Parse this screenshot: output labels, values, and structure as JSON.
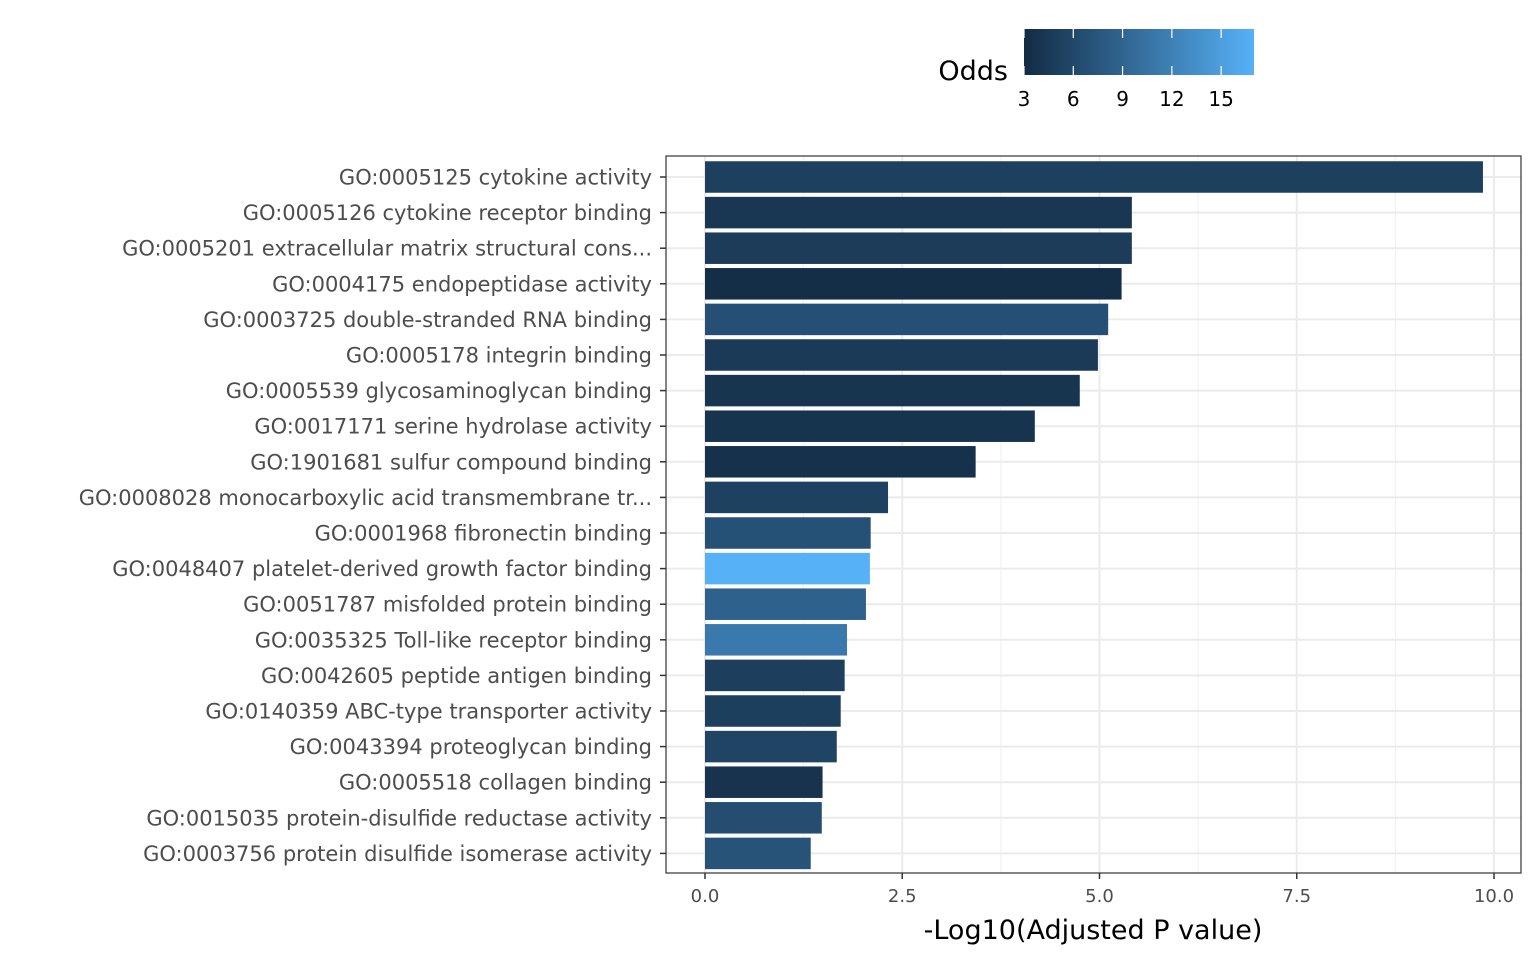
{
  "chart_data": {
    "type": "bar",
    "orientation": "horizontal",
    "title": "",
    "xlabel": "-Log10(Adjusted P value)",
    "ylabel": "",
    "xlim": [
      -0.5,
      10.35
    ],
    "x_ticks": [
      0,
      2.5,
      5,
      7.5,
      10
    ],
    "x_tick_labels": [
      "0.0",
      "2.5",
      "5.0",
      "7.5",
      "10.0"
    ],
    "grid": true,
    "legend": {
      "title": "Odds",
      "placement": "top",
      "type": "colorbar",
      "range": [
        3,
        17
      ],
      "ticks": [
        3,
        6,
        9,
        12,
        15
      ],
      "tick_labels": [
        "3",
        "6",
        "9",
        "12",
        "15"
      ],
      "color_low": "#132b43",
      "color_high": "#56b1f7"
    },
    "categories": [
      "GO:0005125 cytokine activity",
      "GO:0005126 cytokine receptor binding",
      "GO:0005201 extracellular matrix structural cons...",
      "GO:0004175 endopeptidase activity",
      "GO:0003725 double-stranded RNA binding",
      "GO:0005178 integrin binding",
      "GO:0005539 glycosaminoglycan binding",
      "GO:0017171 serine hydrolase activity",
      "GO:1901681 sulfur compound binding",
      "GO:0008028 monocarboxylic acid transmembrane tr...",
      "GO:0001968 fibronectin binding",
      "GO:0048407 platelet-derived growth factor binding",
      "GO:0051787 misfolded protein binding",
      "GO:0035325 Toll-like receptor binding",
      "GO:0042605 peptide antigen binding",
      "GO:0140359 ABC-type transporter activity",
      "GO:0043394 proteoglycan binding",
      "GO:0005518 collagen binding",
      "GO:0015035 protein-disulfide reductase activity",
      "GO:0003756 protein disulfide isomerase activity"
    ],
    "values": [
      9.86,
      5.41,
      5.41,
      5.28,
      5.11,
      4.98,
      4.75,
      4.18,
      3.43,
      2.32,
      2.1,
      2.09,
      2.04,
      1.8,
      1.77,
      1.72,
      1.67,
      1.49,
      1.48,
      1.34
    ],
    "odds": [
      5.2,
      4.2,
      4.8,
      3.3,
      6.8,
      4.6,
      4.0,
      3.9,
      3.6,
      5.3,
      7.0,
      17.0,
      8.6,
      11.2,
      5.0,
      5.1,
      5.6,
      3.8,
      6.5,
      7.2
    ]
  }
}
